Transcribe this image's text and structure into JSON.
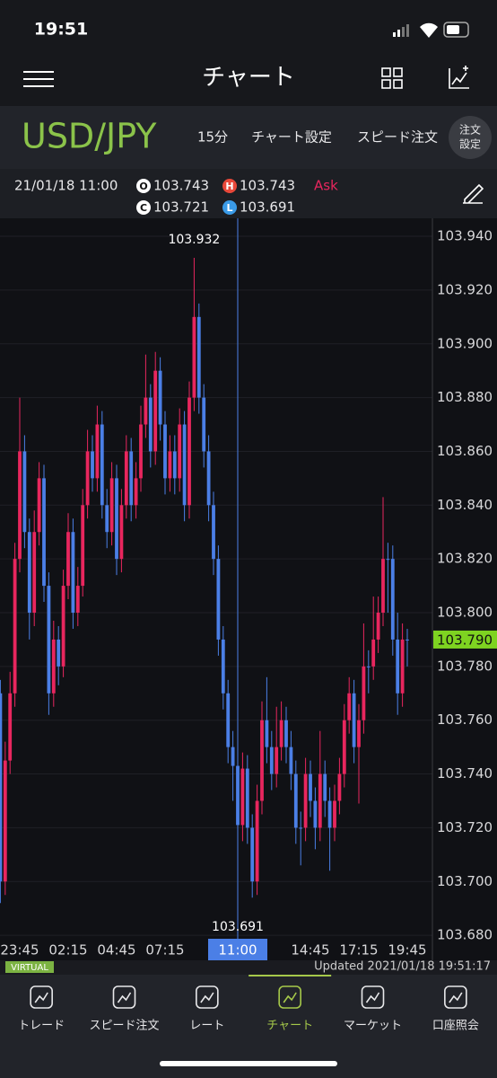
{
  "status_bar": {
    "time": "19:51"
  },
  "nav": {
    "title": "チャート"
  },
  "header": {
    "symbol": "USD/JPY",
    "interval": "15分",
    "buttons": [
      "チャート設定",
      "スピード注文"
    ],
    "order_settings": [
      "注文",
      "設定"
    ]
  },
  "info": {
    "datetime": "21/01/18 11:00",
    "open": {
      "badge": "O",
      "value": 103.743
    },
    "high": {
      "badge": "H",
      "value": 103.743
    },
    "close": {
      "badge": "C",
      "value": 103.721
    },
    "low": {
      "badge": "L",
      "value": 103.691
    },
    "side": "Ask"
  },
  "chart_data": {
    "type": "candlestick",
    "categories": [
      null,
      null,
      null,
      null,
      "23:45",
      null,
      null,
      null,
      null,
      null,
      null,
      null,
      null,
      null,
      "02:15",
      null,
      null,
      null,
      null,
      null,
      null,
      null,
      null,
      null,
      "04:45",
      null,
      null,
      null,
      null,
      null,
      null,
      null,
      null,
      null,
      "07:15",
      null,
      null,
      null,
      null,
      null,
      null,
      null,
      null,
      null,
      null,
      null,
      null,
      null,
      null,
      "11:00",
      null,
      null,
      null,
      null,
      null,
      null,
      null,
      null,
      null,
      null,
      null,
      null,
      null,
      null,
      "14:45",
      null,
      null,
      null,
      null,
      null,
      null,
      null,
      null,
      null,
      "17:15",
      null,
      null,
      null,
      null,
      null,
      null,
      null,
      null,
      null,
      "19:45"
    ],
    "open": [
      103.77,
      103.7,
      103.745,
      103.77,
      103.82,
      103.86,
      103.83,
      103.8,
      103.83,
      103.85,
      103.81,
      103.77,
      103.79,
      103.78,
      103.81,
      103.83,
      103.8,
      103.81,
      103.84,
      103.86,
      103.85,
      103.87,
      103.84,
      103.83,
      103.85,
      103.82,
      103.84,
      103.86,
      103.84,
      103.85,
      103.87,
      103.88,
      103.86,
      103.89,
      103.87,
      103.85,
      103.86,
      103.85,
      103.87,
      103.84,
      103.88,
      103.91,
      103.88,
      103.86,
      103.84,
      103.82,
      103.79,
      103.77,
      103.75,
      103.743,
      103.721,
      103.742,
      103.72,
      103.7,
      103.73,
      103.76,
      103.75,
      103.74,
      103.75,
      103.76,
      103.75,
      103.74,
      103.72,
      103.72,
      103.74,
      103.73,
      103.72,
      103.74,
      103.73,
      103.72,
      103.73,
      103.74,
      103.76,
      103.77,
      103.75,
      103.76,
      103.78,
      103.78,
      103.79,
      103.8,
      103.82,
      103.82,
      103.79,
      103.77,
      103.79
    ],
    "high": [
      103.775,
      103.752,
      103.778,
      103.826,
      103.88,
      103.866,
      103.835,
      103.838,
      103.856,
      103.855,
      103.815,
      103.797,
      103.795,
      103.816,
      103.837,
      103.835,
      103.817,
      103.846,
      103.868,
      103.866,
      103.877,
      103.875,
      103.846,
      103.856,
      103.855,
      103.846,
      103.866,
      103.865,
      103.856,
      103.877,
      103.896,
      103.885,
      103.897,
      103.895,
      103.875,
      103.866,
      103.866,
      103.876,
      103.875,
      103.886,
      103.932,
      103.915,
      103.885,
      103.866,
      103.845,
      103.825,
      103.795,
      103.775,
      103.756,
      103.743,
      103.748,
      103.747,
      103.725,
      103.736,
      103.767,
      103.776,
      103.756,
      103.765,
      103.767,
      103.765,
      103.756,
      103.745,
      103.726,
      103.746,
      103.745,
      103.735,
      103.756,
      103.745,
      103.735,
      103.736,
      103.746,
      103.766,
      103.776,
      103.775,
      103.766,
      103.796,
      103.786,
      103.806,
      103.806,
      103.843,
      103.826,
      103.825,
      103.8,
      103.796,
      103.794
    ],
    "low": [
      103.692,
      103.695,
      103.74,
      103.765,
      103.815,
      103.824,
      103.79,
      103.795,
      103.825,
      103.804,
      103.762,
      103.765,
      103.773,
      103.776,
      103.805,
      103.794,
      103.795,
      103.806,
      103.835,
      103.845,
      103.845,
      103.835,
      103.824,
      103.825,
      103.814,
      103.815,
      103.835,
      103.834,
      103.835,
      103.845,
      103.865,
      103.854,
      103.855,
      103.864,
      103.844,
      103.845,
      103.844,
      103.845,
      103.834,
      103.835,
      103.875,
      103.874,
      103.854,
      103.834,
      103.814,
      103.784,
      103.764,
      103.744,
      103.73,
      103.691,
      103.715,
      103.714,
      103.694,
      103.695,
      103.725,
      103.744,
      103.734,
      103.735,
      103.745,
      103.744,
      103.734,
      103.714,
      103.706,
      103.715,
      103.724,
      103.712,
      103.715,
      103.724,
      103.704,
      103.715,
      103.725,
      103.735,
      103.755,
      103.744,
      103.729,
      103.755,
      103.77,
      103.775,
      103.785,
      103.795,
      103.8,
      103.784,
      103.762,
      103.765,
      103.78
    ],
    "close": [
      103.7,
      103.745,
      103.77,
      103.82,
      103.86,
      103.83,
      103.8,
      103.83,
      103.85,
      103.81,
      103.77,
      103.79,
      103.78,
      103.81,
      103.83,
      103.8,
      103.81,
      103.84,
      103.86,
      103.85,
      103.87,
      103.84,
      103.83,
      103.85,
      103.82,
      103.84,
      103.86,
      103.84,
      103.85,
      103.87,
      103.88,
      103.86,
      103.89,
      103.87,
      103.85,
      103.86,
      103.85,
      103.87,
      103.84,
      103.88,
      103.91,
      103.88,
      103.86,
      103.84,
      103.82,
      103.79,
      103.77,
      103.75,
      103.743,
      103.721,
      103.742,
      103.72,
      103.7,
      103.73,
      103.76,
      103.75,
      103.74,
      103.75,
      103.76,
      103.75,
      103.74,
      103.72,
      103.72,
      103.74,
      103.73,
      103.72,
      103.74,
      103.73,
      103.72,
      103.73,
      103.74,
      103.76,
      103.77,
      103.75,
      103.76,
      103.78,
      103.78,
      103.79,
      103.8,
      103.82,
      103.82,
      103.79,
      103.77,
      103.79,
      103.79
    ],
    "up_color": "#e8265e",
    "down_color": "#4b7fe6",
    "ylim": [
      103.6787,
      103.9467
    ],
    "yticks": [
      {
        "value": 103.68,
        "label": "103.680"
      },
      {
        "value": 103.7,
        "label": "103.700"
      },
      {
        "value": 103.72,
        "label": "103.720"
      },
      {
        "value": 103.74,
        "label": "103.740"
      },
      {
        "value": 103.76,
        "label": "103.760"
      },
      {
        "value": 103.78,
        "label": "103.780"
      },
      {
        "value": 103.8,
        "label": "103.800"
      },
      {
        "value": 103.82,
        "label": "103.820"
      },
      {
        "value": 103.84,
        "label": "103.840"
      },
      {
        "value": 103.86,
        "label": "103.860"
      },
      {
        "value": 103.88,
        "label": "103.880"
      },
      {
        "value": 103.9,
        "label": "103.900"
      },
      {
        "value": 103.92,
        "label": "103.920"
      },
      {
        "value": 103.94,
        "label": "103.940"
      }
    ],
    "grid": true,
    "annotations": [
      103.932,
      103.691
    ],
    "last_price": {
      "value": 103.79,
      "label": "103.790"
    },
    "last_price_color": "#7ed321"
  },
  "status": {
    "badge": "VIRTUAL",
    "updated": "Updated  2021/01/18 19:51:17"
  },
  "tabs": [
    {
      "label": "トレード",
      "active": false
    },
    {
      "label": "スピード注文",
      "active": false
    },
    {
      "label": "レート",
      "active": false
    },
    {
      "label": "チャート",
      "active": true
    },
    {
      "label": "マーケット",
      "active": false
    },
    {
      "label": "口座照会",
      "active": false
    }
  ]
}
